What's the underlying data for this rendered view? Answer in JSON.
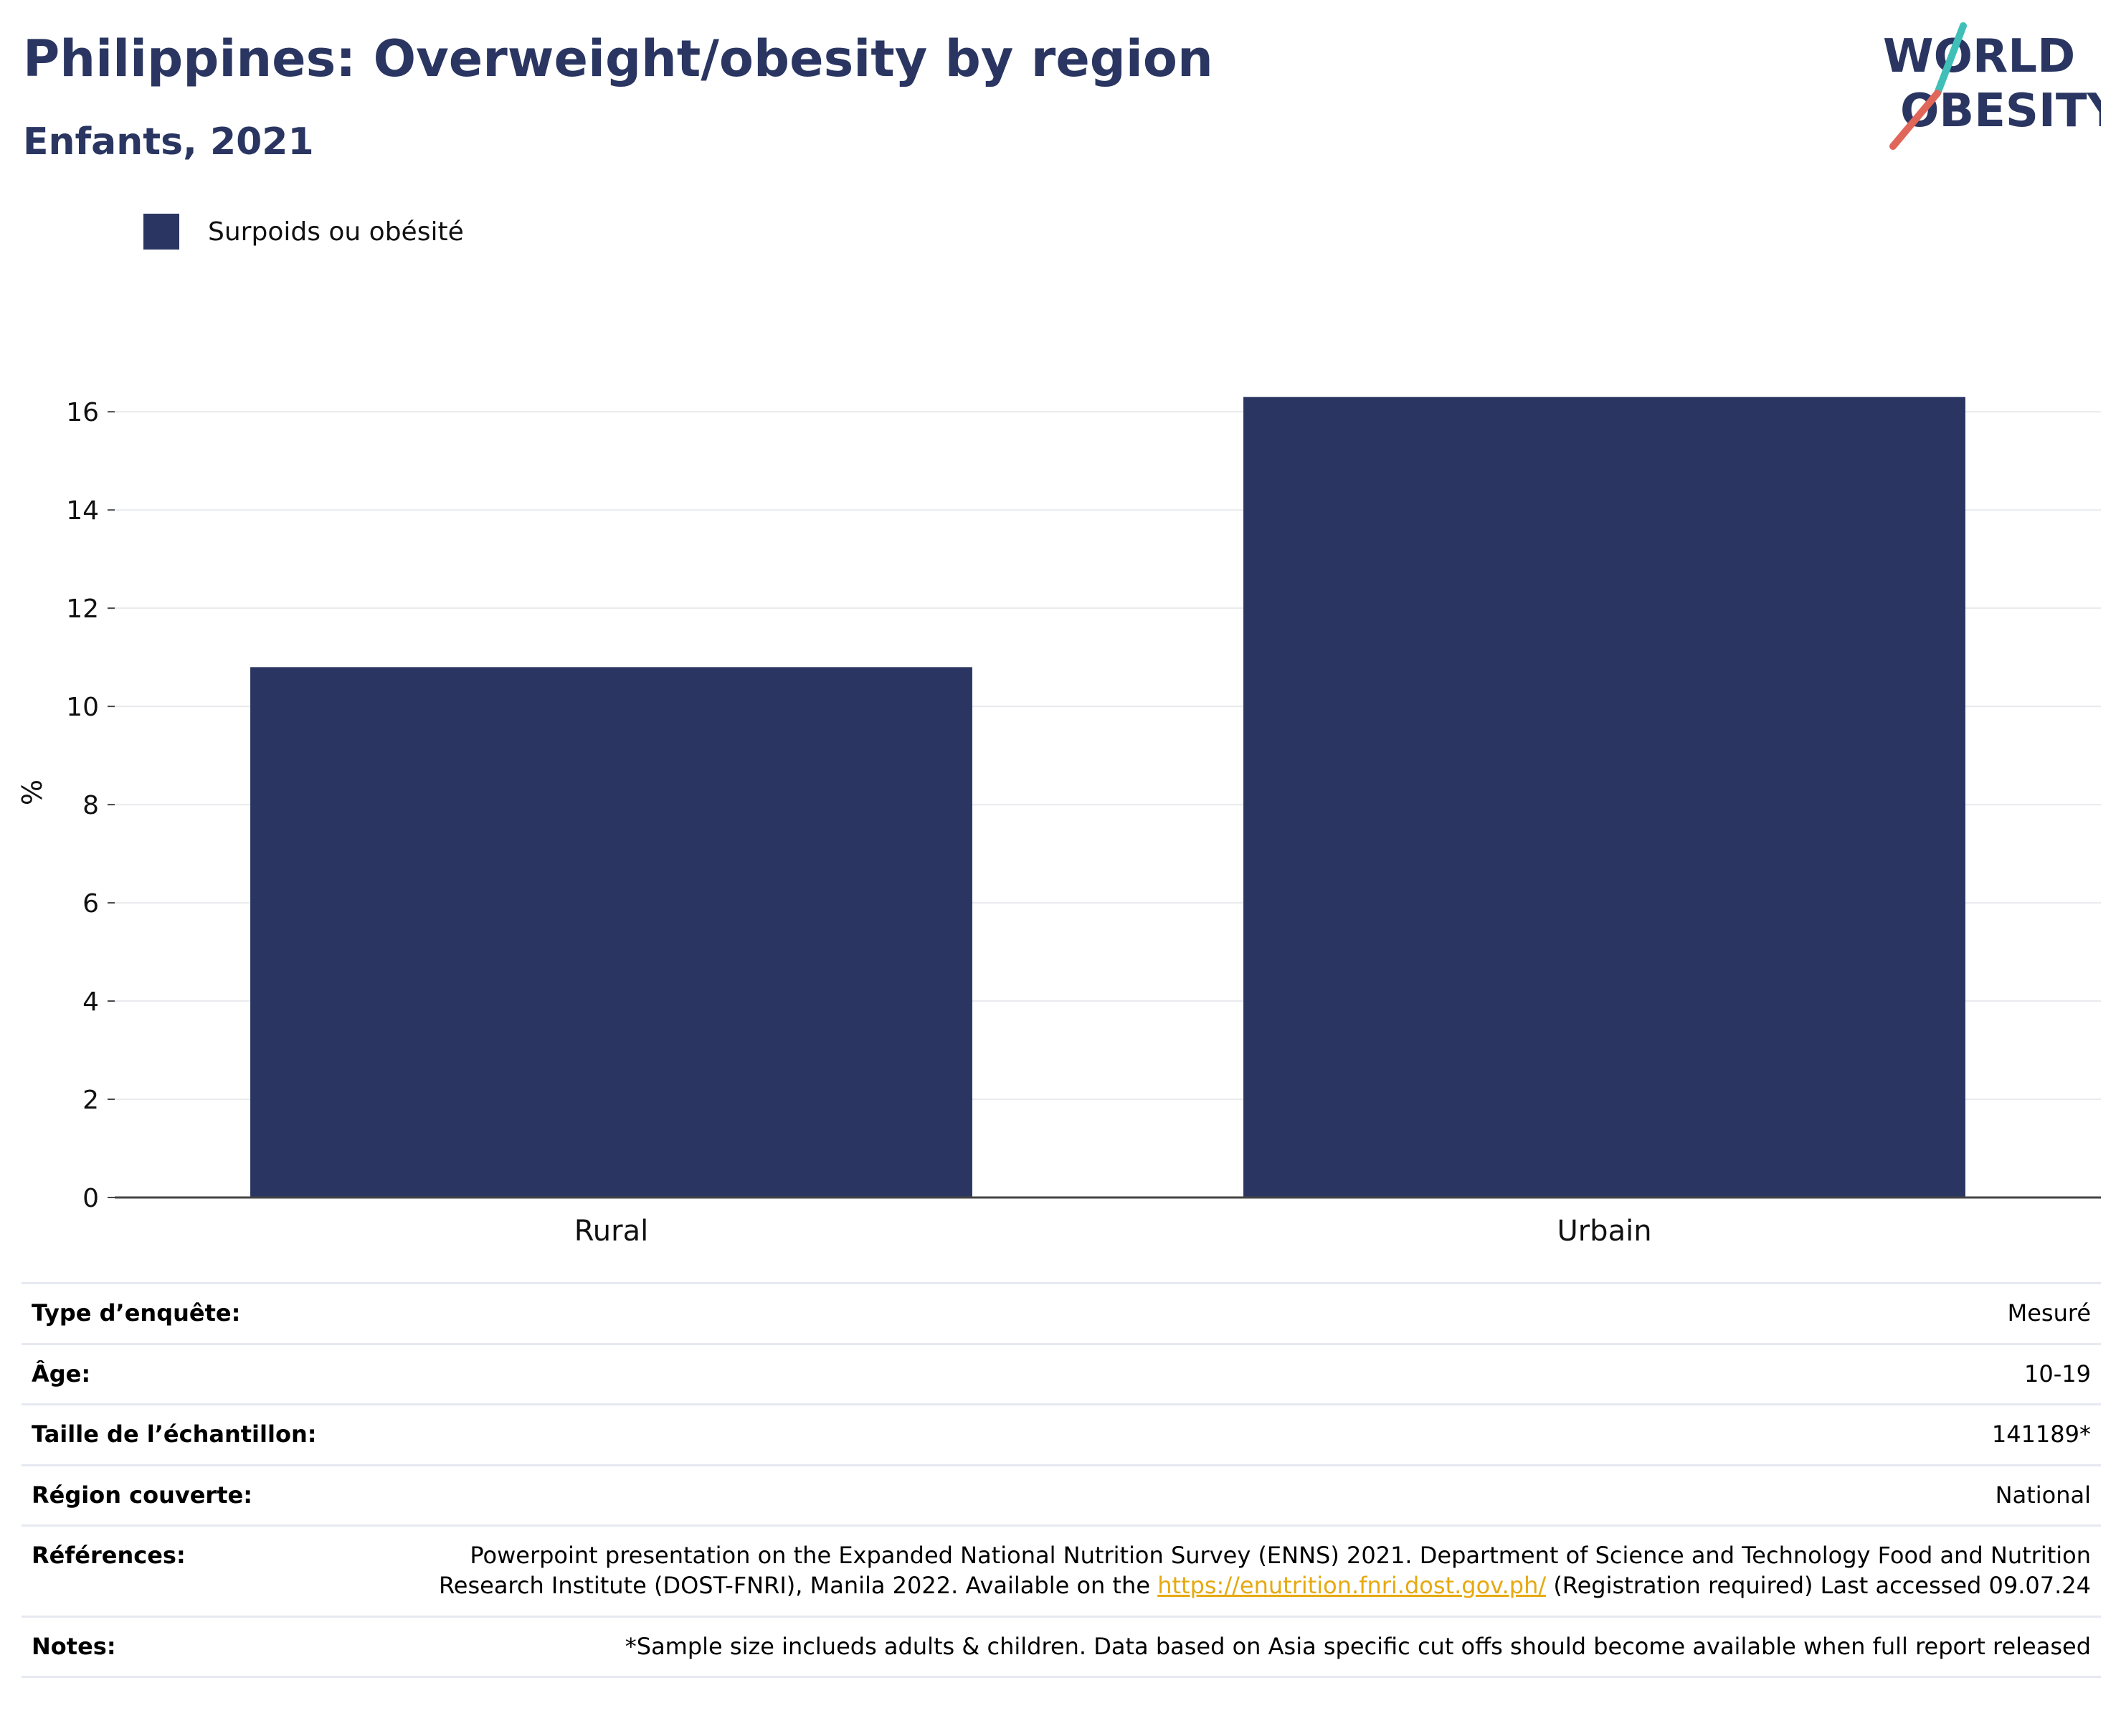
{
  "header": {
    "title": "Philippines: Overweight/obesity by region",
    "subtitle": "Enfants, 2021"
  },
  "logo": {
    "line1": "WORLD",
    "line2": "OBESITY",
    "accent_teal": "#3fbfb7",
    "accent_red": "#e0665a"
  },
  "chart_data": {
    "type": "bar",
    "categories": [
      "Rural",
      "Urbain"
    ],
    "series": [
      {
        "name": "Surpoids ou obésité",
        "values": [
          10.8,
          16.3
        ],
        "color": "#2a3661"
      }
    ],
    "ylabel": "%",
    "ylim": [
      0,
      16.5
    ],
    "yticks": [
      0,
      2,
      4,
      6,
      8,
      10,
      12,
      14,
      16
    ],
    "grid": true,
    "legend": "top-left"
  },
  "info": {
    "survey_type": {
      "label": "Type d’enquête:",
      "value": "Mesuré"
    },
    "age": {
      "label": "Âge:",
      "value": "10-19"
    },
    "sample_size": {
      "label": "Taille de l’échantillon:",
      "value": "141189*"
    },
    "region": {
      "label": "Région couverte:",
      "value": "National"
    },
    "references": {
      "label": "Références:",
      "text_before": "Powerpoint presentation on the Expanded National Nutrition Survey (ENNS) 2021. Department of Science and Technology Food and Nutrition Research Institute (DOST-FNRI), Manila 2022. Available on the ",
      "link": "https://enutrition.fnri.dost.gov.ph/",
      "text_after": " (Registration required) Last accessed 09.07.24"
    },
    "notes": {
      "label": "Notes:",
      "value": "*Sample size inclueds adults & children. Data based on Asia specific cut offs should become available when full report released"
    }
  }
}
